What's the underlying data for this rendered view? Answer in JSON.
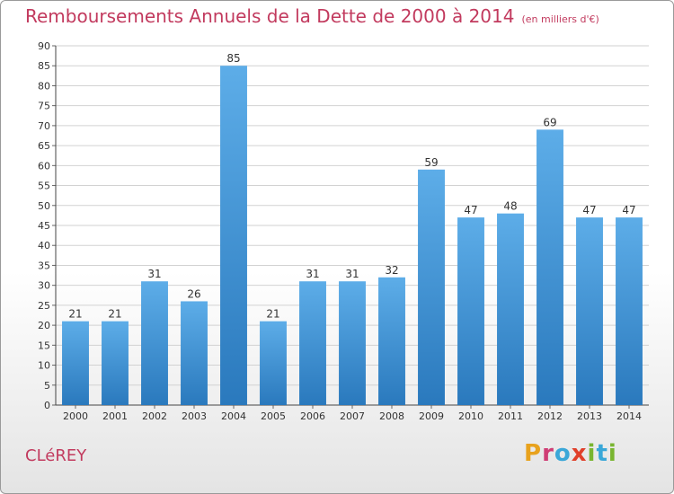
{
  "header": {
    "title": "Remboursements Annuels de la Dette de 2000 à 2014",
    "subtitle": "(en milliers d'€)"
  },
  "footer": {
    "commune": "CLéREY",
    "logo": {
      "letters": [
        "P",
        "r",
        "o",
        "x",
        "i",
        "t",
        "i"
      ],
      "colors": [
        "#e8a21d",
        "#cf3d74",
        "#3aa7d8",
        "#e0402a",
        "#79b530",
        "#3aa7d8",
        "#79b530"
      ]
    }
  },
  "chart_data": {
    "type": "bar",
    "title": "Remboursements Annuels de la Dette de 2000 à 2014",
    "subtitle": "(en milliers d'€)",
    "xlabel": "",
    "ylabel": "",
    "categories": [
      "2000",
      "2001",
      "2002",
      "2003",
      "2004",
      "2005",
      "2006",
      "2007",
      "2008",
      "2009",
      "2010",
      "2011",
      "2012",
      "2013",
      "2014"
    ],
    "values": [
      21,
      21,
      31,
      26,
      85,
      21,
      31,
      31,
      32,
      59,
      47,
      48,
      69,
      47,
      47
    ],
    "ylim": [
      0,
      90
    ],
    "ytick_step": 5,
    "grid": true,
    "bar_color_top": "#5dade8",
    "bar_color_bottom": "#2a79bd",
    "accent_color": "#c23a5e"
  }
}
